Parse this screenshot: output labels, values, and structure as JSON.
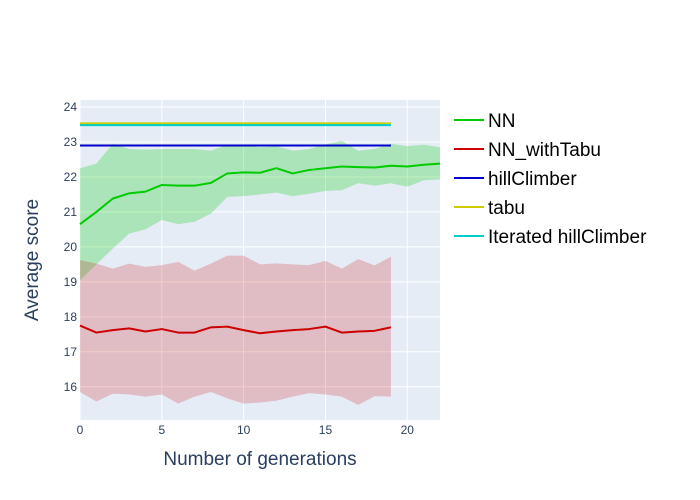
{
  "chart_data": {
    "type": "line",
    "title": "",
    "xlabel": "Number of generations",
    "ylabel": "Average score",
    "xlim": [
      0,
      22
    ],
    "ylim": [
      15.05,
      24.2
    ],
    "xticks": [
      0,
      5,
      10,
      15,
      20
    ],
    "yticks": [
      16,
      17,
      18,
      19,
      20,
      21,
      22,
      23,
      24
    ],
    "grid": true,
    "legend_position": "right",
    "background": "#e5ecf6",
    "series": [
      {
        "name": "NN",
        "color": "#00cc00",
        "band_color": "rgba(0,204,0,0.25)",
        "x": [
          0,
          1,
          2,
          3,
          4,
          5,
          6,
          7,
          8,
          9,
          10,
          11,
          12,
          13,
          14,
          15,
          16,
          17,
          18,
          19,
          20,
          21,
          22
        ],
        "y": [
          20.65,
          21.0,
          21.38,
          21.53,
          21.58,
          21.77,
          21.75,
          21.75,
          21.83,
          22.1,
          22.13,
          22.12,
          22.25,
          22.1,
          22.2,
          22.25,
          22.3,
          22.28,
          22.27,
          22.32,
          22.3,
          22.35,
          22.38
        ],
        "lower": [
          19.05,
          19.5,
          19.95,
          20.38,
          20.5,
          20.77,
          20.65,
          20.72,
          20.95,
          21.43,
          21.45,
          21.5,
          21.55,
          21.45,
          21.52,
          21.6,
          21.62,
          21.82,
          21.75,
          21.82,
          21.72,
          21.9,
          21.93
        ],
        "upper": [
          22.25,
          22.38,
          22.95,
          22.8,
          22.78,
          22.8,
          22.8,
          22.8,
          22.75,
          22.92,
          22.9,
          22.85,
          22.88,
          22.75,
          22.8,
          22.93,
          23.03,
          22.75,
          22.8,
          22.95,
          22.88,
          22.92,
          22.85
        ]
      },
      {
        "name": "NN_withTabu",
        "color": "#cc0000",
        "band_color": "rgba(204,0,0,0.2)",
        "x": [
          0,
          1,
          2,
          3,
          4,
          5,
          6,
          7,
          8,
          9,
          10,
          11,
          12,
          13,
          14,
          15,
          16,
          17,
          18,
          19
        ],
        "y": [
          17.75,
          17.55,
          17.62,
          17.67,
          17.58,
          17.65,
          17.55,
          17.55,
          17.7,
          17.72,
          17.62,
          17.53,
          17.58,
          17.62,
          17.65,
          17.72,
          17.55,
          17.58,
          17.6,
          17.7
        ],
        "lower": [
          15.85,
          15.58,
          15.8,
          15.78,
          15.72,
          15.78,
          15.52,
          15.72,
          15.85,
          15.67,
          15.52,
          15.55,
          15.6,
          15.72,
          15.82,
          15.78,
          15.72,
          15.48,
          15.73,
          15.72
        ],
        "upper": [
          19.62,
          19.52,
          19.38,
          19.52,
          19.43,
          19.48,
          19.57,
          19.32,
          19.52,
          19.75,
          19.75,
          19.5,
          19.53,
          19.5,
          19.48,
          19.6,
          19.38,
          19.65,
          19.47,
          19.72
        ]
      },
      {
        "name": "hillClimber",
        "color": "#0000cc",
        "x": [
          0,
          19
        ],
        "y": [
          22.9,
          22.9
        ]
      },
      {
        "name": "tabu",
        "color": "#cccc00",
        "x": [
          0,
          19
        ],
        "y": [
          23.53,
          23.53
        ]
      },
      {
        "name": "Iterated hillClimber",
        "color": "#00cccc",
        "x": [
          0,
          19
        ],
        "y": [
          23.48,
          23.48
        ]
      }
    ]
  }
}
